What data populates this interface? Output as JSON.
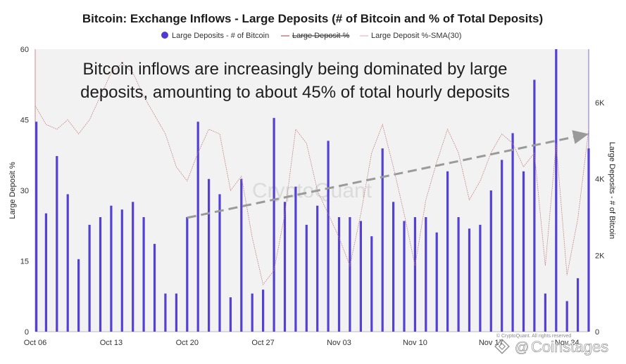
{
  "chart_data": {
    "type": "bar",
    "title": "Bitcoin: Exchange Inflows - Large Deposits (# of Bitcoin and % of Total Deposits)",
    "legend": [
      {
        "label": "Large Deposits - # of Bitcoin",
        "color": "#4f3bd0",
        "marker": "circle"
      },
      {
        "label": "Large Deposit %",
        "color": "#b35a5a",
        "marker": "line-strike"
      },
      {
        "label": "Large Deposit %-SMA(30)",
        "color": "#e8b8b8",
        "marker": "line"
      }
    ],
    "legend_position": "top-center",
    "annotation": [
      "Bitcoin inflows are increasingly being dominated by large",
      "deposits, amounting to about 45% of total hourly deposits"
    ],
    "watermark": "CryptoQuant",
    "watermark_small": "© CryptoQuant. All rights reserved",
    "source_credit": "Coinstages",
    "x_ticks": [
      "Oct 06",
      "Oct 13",
      "Oct 20",
      "Oct 27",
      "Nov 03",
      "Nov 10",
      "Nov 17",
      "Nov 24"
    ],
    "x_range": [
      "Oct 06",
      "Nov 26"
    ],
    "y_left": {
      "label": "Large Deposit %",
      "ticks": [
        "0",
        "15",
        "30",
        "45",
        "60"
      ],
      "range": [
        0,
        60
      ]
    },
    "y_right": {
      "label": "Large Deposits - # of Bitcoin",
      "ticks": [
        "0",
        "2K",
        "4K",
        "6K"
      ],
      "range": [
        0,
        7400
      ]
    },
    "grid": false,
    "trend_arrow": {
      "from": {
        "x": "Oct 20",
        "y": 24.2
      },
      "to": {
        "x": "Nov 26",
        "y": 42
      }
    },
    "series": [
      {
        "name": "Large Deposits - # of Bitcoin",
        "axis": "right",
        "x": [
          "Oct 06",
          "Oct 07",
          "Oct 08",
          "Oct 09",
          "Oct 10",
          "Oct 11",
          "Oct 12",
          "Oct 13",
          "Oct 14",
          "Oct 15",
          "Oct 16",
          "Oct 17",
          "Oct 18",
          "Oct 19",
          "Oct 20",
          "Oct 21",
          "Oct 22",
          "Oct 23",
          "Oct 24",
          "Oct 25",
          "Oct 26",
          "Oct 27",
          "Oct 28",
          "Oct 29",
          "Oct 30",
          "Oct 31",
          "Nov 01",
          "Nov 02",
          "Nov 03",
          "Nov 04",
          "Nov 05",
          "Nov 06",
          "Nov 07",
          "Nov 08",
          "Nov 09",
          "Nov 10",
          "Nov 11",
          "Nov 12",
          "Nov 13",
          "Nov 14",
          "Nov 15",
          "Nov 16",
          "Nov 17",
          "Nov 18",
          "Nov 19",
          "Nov 20",
          "Nov 21",
          "Nov 22",
          "Nov 23",
          "Nov 24",
          "Nov 25",
          "Nov 26"
        ],
        "values": [
          5500,
          3100,
          4600,
          3600,
          1900,
          2800,
          3000,
          3300,
          3200,
          3400,
          3000,
          2300,
          1000,
          1000,
          3000,
          5500,
          4000,
          3600,
          900,
          4000,
          1000,
          1100,
          5600,
          3400,
          3800,
          2800,
          3300,
          5000,
          3000,
          3000,
          2900,
          2500,
          4800,
          3400,
          2900,
          3000,
          3000,
          2600,
          4200,
          3000,
          2700,
          2800,
          3700,
          4500,
          5200,
          4200,
          6600,
          1000,
          7400,
          800,
          1400,
          4800
        ]
      },
      {
        "name": "Large Deposit %",
        "axis": "left",
        "x": [
          "Oct 06",
          "Oct 07",
          "Oct 08",
          "Oct 09",
          "Oct 10",
          "Oct 11",
          "Oct 12",
          "Oct 13",
          "Oct 14",
          "Oct 15",
          "Oct 16",
          "Oct 17",
          "Oct 18",
          "Oct 19",
          "Oct 20",
          "Oct 21",
          "Oct 22",
          "Oct 23",
          "Oct 24",
          "Oct 25",
          "Oct 26",
          "Oct 27",
          "Oct 28",
          "Oct 29",
          "Oct 30",
          "Oct 31",
          "Nov 01",
          "Nov 02",
          "Nov 03",
          "Nov 04",
          "Nov 05",
          "Nov 06",
          "Nov 07",
          "Nov 08",
          "Nov 09",
          "Nov 10",
          "Nov 11",
          "Nov 12",
          "Nov 13",
          "Nov 14",
          "Nov 15",
          "Nov 16",
          "Nov 17",
          "Nov 18",
          "Nov 19",
          "Nov 20",
          "Nov 21",
          "Nov 22",
          "Nov 23",
          "Nov 24",
          "Nov 25",
          "Nov 26"
        ],
        "values": [
          48,
          44,
          43,
          45,
          42,
          45,
          50,
          55,
          57,
          55,
          50,
          46,
          42,
          35,
          32,
          38,
          43,
          42,
          30,
          33,
          20,
          10,
          13,
          25,
          43,
          40,
          30,
          25,
          20,
          14,
          25,
          38,
          44,
          35,
          25,
          14,
          28,
          36,
          43,
          38,
          28,
          32,
          38,
          42,
          40,
          35,
          38,
          14,
          40,
          12,
          24,
          43
        ]
      }
    ]
  }
}
